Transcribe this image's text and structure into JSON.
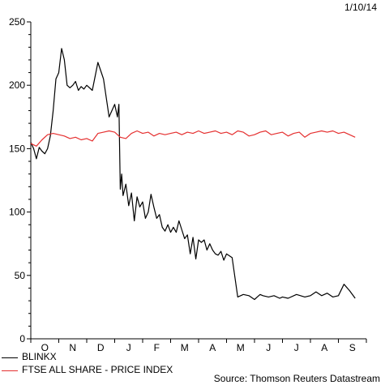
{
  "date": "1/10/14",
  "source": "Source: Thomson Reuters Datastream",
  "chart_data": {
    "type": "line",
    "title": "",
    "xlabel": "",
    "ylabel": "",
    "ylim": [
      0,
      250
    ],
    "yticks": [
      0,
      50,
      100,
      150,
      200,
      250
    ],
    "xticks": [
      "O",
      "N",
      "D",
      "J",
      "F",
      "M",
      "A",
      "M",
      "J",
      "J",
      "A",
      "S"
    ],
    "grid": false,
    "legend_position": "bottom-left",
    "series": [
      {
        "name": "BLINKX",
        "color": "#000000",
        "x": [
          0,
          0.1,
          0.2,
          0.3,
          0.4,
          0.5,
          0.6,
          0.7,
          0.8,
          0.9,
          1.0,
          1.1,
          1.2,
          1.3,
          1.4,
          1.5,
          1.6,
          1.7,
          1.8,
          1.9,
          2.0,
          2.2,
          2.4,
          2.6,
          2.8,
          3.0,
          3.1,
          3.15,
          3.2,
          3.25,
          3.3,
          3.4,
          3.5,
          3.6,
          3.7,
          3.8,
          3.9,
          4.0,
          4.1,
          4.2,
          4.3,
          4.4,
          4.5,
          4.6,
          4.7,
          4.8,
          4.9,
          5.0,
          5.1,
          5.2,
          5.3,
          5.4,
          5.5,
          5.6,
          5.7,
          5.8,
          5.9,
          6.0,
          6.1,
          6.2,
          6.3,
          6.4,
          6.5,
          6.6,
          6.7,
          6.8,
          6.9,
          7.0,
          7.2,
          7.4,
          7.6,
          7.8,
          8.0,
          8.1,
          8.2,
          8.3,
          8.5,
          8.7,
          8.9,
          9.0,
          9.2,
          9.5,
          9.8,
          10.0,
          10.2,
          10.4,
          10.6,
          10.8,
          11.0,
          11.2,
          11.4,
          11.6
        ],
        "values": [
          155,
          150,
          142,
          151,
          148,
          146,
          150,
          160,
          180,
          205,
          210,
          229,
          220,
          200,
          198,
          200,
          203,
          196,
          199,
          197,
          200,
          196,
          218,
          205,
          175,
          185,
          175,
          185,
          118,
          130,
          113,
          122,
          105,
          115,
          93,
          112,
          104,
          108,
          95,
          100,
          114,
          104,
          95,
          98,
          88,
          85,
          90,
          84,
          88,
          84,
          93,
          86,
          79,
          82,
          67,
          80,
          63,
          78,
          76,
          78,
          70,
          75,
          70,
          67,
          66,
          69,
          62,
          67,
          64,
          33,
          35,
          34,
          31,
          33,
          35,
          34,
          33,
          34,
          32,
          33,
          32,
          35,
          33,
          34,
          37,
          34,
          36,
          33,
          34,
          43,
          38,
          32
        ]
      },
      {
        "name": "FTSE ALL SHARE - PRICE INDEX",
        "color": "#e53030",
        "x": [
          0,
          0.2,
          0.4,
          0.6,
          0.8,
          1.0,
          1.2,
          1.4,
          1.6,
          1.8,
          2.0,
          2.2,
          2.4,
          2.6,
          2.8,
          3.0,
          3.2,
          3.4,
          3.6,
          3.8,
          4.0,
          4.2,
          4.4,
          4.6,
          4.8,
          5.0,
          5.2,
          5.4,
          5.6,
          5.8,
          6.0,
          6.2,
          6.4,
          6.6,
          6.8,
          7.0,
          7.2,
          7.4,
          7.6,
          7.8,
          8.0,
          8.2,
          8.4,
          8.6,
          8.8,
          9.0,
          9.2,
          9.4,
          9.6,
          9.8,
          10.0,
          10.2,
          10.4,
          10.6,
          10.8,
          11.0,
          11.2,
          11.4,
          11.6
        ],
        "values": [
          154,
          152,
          157,
          161,
          162,
          161,
          160,
          158,
          159,
          157,
          158,
          156,
          162,
          163,
          164,
          163,
          159,
          158,
          162,
          164,
          162,
          163,
          160,
          162,
          161,
          162,
          163,
          161,
          163,
          162,
          164,
          162,
          163,
          164,
          162,
          163,
          161,
          164,
          163,
          160,
          161,
          163,
          164,
          161,
          162,
          163,
          160,
          162,
          163,
          159,
          162,
          163,
          164,
          163,
          164,
          162,
          163,
          161,
          159
        ]
      }
    ]
  }
}
